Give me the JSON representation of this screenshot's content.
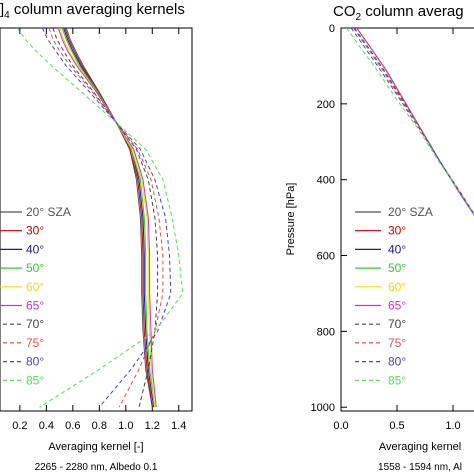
{
  "chart_data": [
    {
      "type": "line",
      "title_prefix": "",
      "title_sub": "4",
      "title_suffix": " column averaging kernels",
      "title_prefix_partial": "]",
      "xlabel": "Averaging kernel [-]",
      "sublabel": "2265 - 2280 nm, Albedo 0.1",
      "ylabel": "",
      "xlim": [
        0.05,
        1.5
      ],
      "ylim": [
        1010,
        0
      ],
      "xticks": [
        "0.2",
        "0.4",
        "0.6",
        "0.8",
        "1.0",
        "1.2",
        "1.4"
      ],
      "xtick_values": [
        0.2,
        0.4,
        0.6,
        0.8,
        1.0,
        1.2,
        1.4
      ],
      "yticks": [],
      "legend_position": "left",
      "series": [
        {
          "name": "20° SZA",
          "color": "#555555",
          "dash": false,
          "x": [
            0.55,
            0.58,
            0.62,
            0.68,
            0.8,
            0.93,
            1.03,
            1.08,
            1.11,
            1.12,
            1.12,
            1.13,
            1.15,
            1.2
          ],
          "y": [
            0,
            30,
            60,
            100,
            170,
            250,
            320,
            400,
            500,
            600,
            700,
            800,
            900,
            1000
          ]
        },
        {
          "name": "30°",
          "color": "#cc0000",
          "dash": false,
          "x": [
            0.54,
            0.57,
            0.61,
            0.67,
            0.8,
            0.93,
            1.03,
            1.09,
            1.12,
            1.13,
            1.13,
            1.14,
            1.16,
            1.2
          ],
          "y": [
            0,
            30,
            60,
            100,
            170,
            250,
            320,
            400,
            500,
            600,
            700,
            800,
            900,
            1000
          ]
        },
        {
          "name": "40°",
          "color": "#1a1a99",
          "dash": false,
          "x": [
            0.53,
            0.56,
            0.6,
            0.66,
            0.79,
            0.93,
            1.04,
            1.1,
            1.13,
            1.14,
            1.14,
            1.15,
            1.17,
            1.21
          ],
          "y": [
            0,
            30,
            60,
            100,
            170,
            250,
            320,
            400,
            500,
            600,
            700,
            800,
            900,
            1000
          ]
        },
        {
          "name": "50°",
          "color": "#33cc33",
          "dash": false,
          "x": [
            0.52,
            0.55,
            0.59,
            0.65,
            0.79,
            0.93,
            1.04,
            1.11,
            1.14,
            1.15,
            1.15,
            1.16,
            1.18,
            1.22
          ],
          "y": [
            0,
            30,
            60,
            100,
            170,
            250,
            320,
            400,
            500,
            600,
            700,
            800,
            900,
            1000
          ]
        },
        {
          "name": "60°",
          "color": "#e6e600",
          "dash": false,
          "x": [
            0.5,
            0.53,
            0.57,
            0.64,
            0.78,
            0.93,
            1.05,
            1.12,
            1.16,
            1.17,
            1.17,
            1.18,
            1.19,
            1.22
          ],
          "y": [
            0,
            30,
            60,
            100,
            170,
            250,
            320,
            400,
            500,
            600,
            700,
            800,
            900,
            1000
          ]
        },
        {
          "name": "65°",
          "color": "#cc33cc",
          "dash": false,
          "x": [
            0.49,
            0.52,
            0.56,
            0.63,
            0.78,
            0.93,
            1.06,
            1.13,
            1.17,
            1.18,
            1.18,
            1.19,
            1.2,
            1.23
          ],
          "y": [
            0,
            30,
            60,
            100,
            170,
            250,
            320,
            400,
            500,
            600,
            700,
            800,
            900,
            1000
          ]
        },
        {
          "name": "70°",
          "color": "#444444",
          "dash": true,
          "x": [
            0.45,
            0.48,
            0.53,
            0.6,
            0.76,
            0.93,
            1.08,
            1.17,
            1.22,
            1.24,
            1.24,
            1.22,
            1.17,
            1.1
          ],
          "y": [
            0,
            30,
            60,
            100,
            170,
            250,
            320,
            400,
            500,
            600,
            700,
            800,
            900,
            1000
          ]
        },
        {
          "name": "75°",
          "color": "#e05050",
          "dash": true,
          "x": [
            0.42,
            0.45,
            0.5,
            0.58,
            0.75,
            0.93,
            1.09,
            1.19,
            1.25,
            1.28,
            1.28,
            1.22,
            1.1,
            0.95
          ],
          "y": [
            0,
            30,
            60,
            100,
            170,
            250,
            320,
            400,
            500,
            600,
            700,
            800,
            900,
            1000
          ]
        },
        {
          "name": "80°",
          "color": "#4444cc",
          "dash": true,
          "x": [
            0.37,
            0.41,
            0.47,
            0.55,
            0.73,
            0.93,
            1.11,
            1.22,
            1.3,
            1.33,
            1.34,
            1.24,
            1.04,
            0.8
          ],
          "y": [
            0,
            30,
            60,
            100,
            170,
            250,
            320,
            400,
            500,
            600,
            700,
            800,
            900,
            1000
          ]
        },
        {
          "name": "85°",
          "color": "#55dd55",
          "dash": true,
          "x": [
            0.18,
            0.24,
            0.32,
            0.44,
            0.67,
            0.93,
            1.15,
            1.28,
            1.35,
            1.4,
            1.43,
            1.22,
            0.8,
            0.35
          ],
          "y": [
            0,
            30,
            60,
            100,
            170,
            250,
            320,
            400,
            500,
            600,
            700,
            800,
            900,
            1000
          ]
        }
      ]
    },
    {
      "type": "line",
      "title_prefix": "CO",
      "title_sub": "2",
      "title_suffix": " column averag",
      "xlabel": "Averaging kernel",
      "sublabel": "1558 - 1594 nm, Al",
      "ylabel": "Pressure [hPa]",
      "xlim": [
        0.0,
        1.25
      ],
      "ylim": [
        1010,
        0
      ],
      "xticks": [
        "0.0",
        "0.5",
        "1.0"
      ],
      "xtick_values": [
        0.0,
        0.5,
        1.0
      ],
      "yticks": [
        "0",
        "200",
        "400",
        "600",
        "800",
        "1000"
      ],
      "ytick_values": [
        0,
        200,
        400,
        600,
        800,
        1000
      ],
      "legend_position": "left",
      "series": [
        {
          "name": "20° SZA",
          "color": "#555555",
          "dash": false,
          "x": [
            0.14,
            0.26,
            0.4,
            0.56,
            0.72,
            0.9,
            1.07,
            1.25
          ],
          "y": [
            0,
            50,
            110,
            190,
            270,
            360,
            440,
            520
          ]
        },
        {
          "name": "30°",
          "color": "#cc0000",
          "dash": false,
          "x": [
            0.14,
            0.26,
            0.4,
            0.56,
            0.72,
            0.9,
            1.07,
            1.25
          ],
          "y": [
            0,
            50,
            110,
            190,
            270,
            360,
            440,
            520
          ]
        },
        {
          "name": "40°",
          "color": "#1a1a99",
          "dash": false,
          "x": [
            0.14,
            0.26,
            0.4,
            0.56,
            0.72,
            0.9,
            1.07,
            1.25
          ],
          "y": [
            0,
            50,
            110,
            190,
            270,
            360,
            440,
            520
          ]
        },
        {
          "name": "50°",
          "color": "#33cc33",
          "dash": false,
          "x": [
            0.14,
            0.26,
            0.4,
            0.56,
            0.72,
            0.9,
            1.07,
            1.25
          ],
          "y": [
            0,
            50,
            110,
            190,
            270,
            360,
            440,
            520
          ]
        },
        {
          "name": "60°",
          "color": "#e6e600",
          "dash": false,
          "x": [
            0.14,
            0.26,
            0.4,
            0.56,
            0.72,
            0.9,
            1.07,
            1.25
          ],
          "y": [
            0,
            50,
            110,
            190,
            270,
            360,
            440,
            520
          ]
        },
        {
          "name": "65°",
          "color": "#cc33cc",
          "dash": false,
          "x": [
            0.14,
            0.26,
            0.4,
            0.56,
            0.72,
            0.9,
            1.07,
            1.25
          ],
          "y": [
            0,
            50,
            110,
            190,
            270,
            360,
            440,
            520
          ]
        },
        {
          "name": "70°",
          "color": "#444444",
          "dash": true,
          "x": [
            0.12,
            0.24,
            0.38,
            0.55,
            0.72,
            0.9,
            1.08,
            1.25
          ],
          "y": [
            0,
            50,
            110,
            190,
            270,
            360,
            440,
            520
          ]
        },
        {
          "name": "75°",
          "color": "#e05050",
          "dash": true,
          "x": [
            0.11,
            0.23,
            0.37,
            0.54,
            0.72,
            0.9,
            1.08,
            1.25
          ],
          "y": [
            0,
            50,
            110,
            190,
            270,
            360,
            440,
            520
          ]
        },
        {
          "name": "80°",
          "color": "#4444cc",
          "dash": true,
          "x": [
            0.09,
            0.21,
            0.35,
            0.53,
            0.71,
            0.9,
            1.08,
            1.25
          ],
          "y": [
            0,
            50,
            110,
            190,
            270,
            360,
            440,
            520
          ]
        },
        {
          "name": "85°",
          "color": "#55dd55",
          "dash": true,
          "x": [
            0.05,
            0.17,
            0.32,
            0.5,
            0.7,
            0.89,
            1.08,
            1.25
          ],
          "y": [
            0,
            50,
            110,
            190,
            270,
            360,
            440,
            520
          ]
        }
      ]
    }
  ]
}
